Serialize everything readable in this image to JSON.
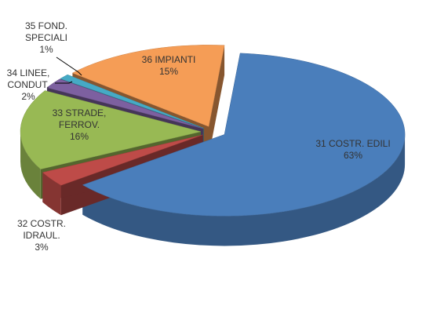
{
  "chart_data": {
    "type": "pie3d",
    "categories": [
      "31 COSTR. EDILI",
      "32 COSTR. IDRAUL.",
      "33 STRADE, FERROV.",
      "34 LINEE, CONDUT.",
      "35 FOND. SPECIALI",
      "36 IMPIANTI"
    ],
    "values": [
      63,
      3,
      16,
      2,
      1,
      15
    ],
    "value_labels": [
      "63%",
      "3%",
      "16%",
      "2%",
      "1%",
      "15%"
    ],
    "colors": [
      "#4a7ebb",
      "#be4b48",
      "#98b954",
      "#7d60a0",
      "#46aac5",
      "#f59d56"
    ]
  }
}
